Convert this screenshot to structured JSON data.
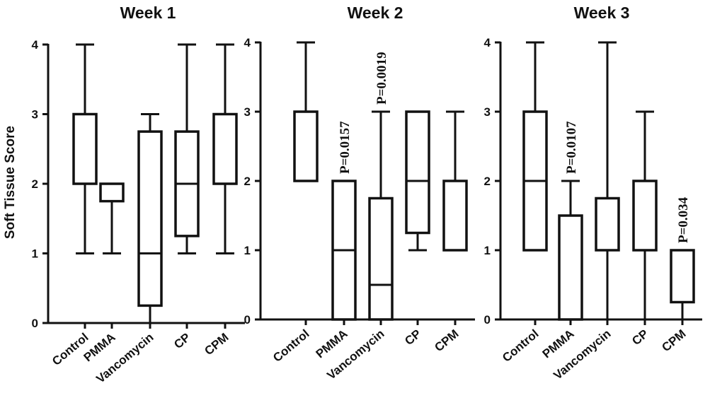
{
  "chart_data": {
    "ylabel": "Soft Tissue Score",
    "panels": [
      {
        "type": "box",
        "title": "Week 1",
        "categories": [
          "Control",
          "PMMA",
          "Vancomycin",
          "CP",
          "CPM"
        ],
        "ylim": [
          0,
          4
        ],
        "yticks": [
          0,
          1,
          2,
          3,
          4
        ],
        "boxes": [
          {
            "min": 1,
            "q1": 2,
            "median": 2,
            "q3": 3,
            "max": 4
          },
          {
            "min": 1,
            "q1": 1.75,
            "median": 2,
            "q3": 2,
            "max": 2
          },
          {
            "min": 0,
            "q1": 0.25,
            "median": 1,
            "q3": 2.75,
            "max": 3
          },
          {
            "min": 1,
            "q1": 1.25,
            "median": 2,
            "q3": 2.75,
            "max": 4
          },
          {
            "min": 1,
            "q1": 2,
            "median": 2,
            "q3": 3,
            "max": 4
          }
        ],
        "annotations": []
      },
      {
        "type": "box",
        "title": "Week 2",
        "categories": [
          "Control",
          "PMMA",
          "Vancomycin",
          "CP",
          "CPM"
        ],
        "ylim": [
          0,
          4
        ],
        "yticks": [
          0,
          1,
          2,
          3,
          4
        ],
        "boxes": [
          {
            "min": 2,
            "q1": 2,
            "median": 2,
            "q3": 3,
            "max": 4
          },
          {
            "min": 0,
            "q1": 0,
            "median": 1,
            "q3": 2,
            "max": 2
          },
          {
            "min": 0,
            "q1": 0,
            "median": 0.5,
            "q3": 1.75,
            "max": 3
          },
          {
            "min": 1,
            "q1": 1.25,
            "median": 2,
            "q3": 3,
            "max": 3
          },
          {
            "min": 1,
            "q1": 1,
            "median": 1,
            "q3": 2,
            "max": 3
          }
        ],
        "annotations": [
          {
            "category": "PMMA",
            "text": "P=0.0157"
          },
          {
            "category": "Vancomycin",
            "text": "P=0.0019"
          }
        ]
      },
      {
        "type": "box",
        "title": "Week 3",
        "categories": [
          "Control",
          "PMMA",
          "Vancomycin",
          "CP",
          "CPM"
        ],
        "ylim": [
          0,
          4
        ],
        "yticks": [
          0,
          1,
          2,
          3,
          4
        ],
        "boxes": [
          {
            "min": 1,
            "q1": 1,
            "median": 2,
            "q3": 3,
            "max": 4
          },
          {
            "min": 0,
            "q1": 0,
            "median": 1.5,
            "q3": 1.5,
            "max": 2
          },
          {
            "min": 0,
            "q1": 1,
            "median": 1,
            "q3": 1.75,
            "max": 4
          },
          {
            "min": 0,
            "q1": 1,
            "median": 2,
            "q3": 2,
            "max": 3
          },
          {
            "min": 0,
            "q1": 0.25,
            "median": 1,
            "q3": 1,
            "max": 1
          }
        ],
        "annotations": [
          {
            "category": "PMMA",
            "text": "P=0.0107"
          },
          {
            "category": "CPM",
            "text": "P=0.034"
          }
        ]
      }
    ]
  }
}
